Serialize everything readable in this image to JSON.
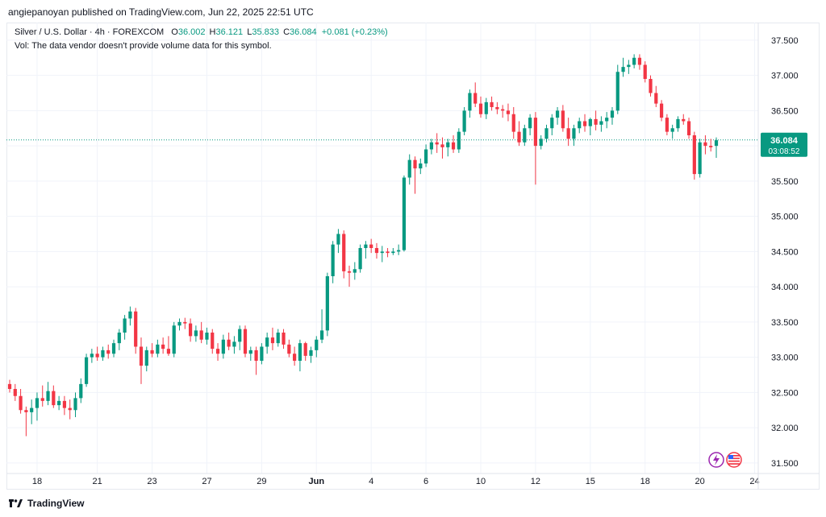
{
  "header": {
    "publisher": "angiepanoyan published on TradingView.com, Jun 22, 2025 22:51 UTC"
  },
  "legend": {
    "symbol": "Silver / U.S. Dollar · 4h · FOREXCOM",
    "open_label": "O",
    "open": "36.002",
    "high_label": "H",
    "high": "36.121",
    "low_label": "L",
    "low": "35.833",
    "close_label": "C",
    "close": "36.084",
    "change": "+0.081 (+0.23%)",
    "vol_note": "Vol: The data vendor doesn't provide volume data for this symbol."
  },
  "price_label": {
    "price": "36.084",
    "countdown": "03:08:52"
  },
  "footer": {
    "brand": "TradingView"
  },
  "icons": {
    "lightning": "lightning-icon",
    "flag": "us-flag-icon"
  },
  "colors": {
    "up": "#089981",
    "down": "#f23645",
    "grid": "#f0f3fa",
    "axis_text": "#131722"
  },
  "chart_data": {
    "type": "candlestick",
    "title": "Silver / U.S. Dollar · 4h · FOREXCOM",
    "ylim": [
      31.35,
      37.75
    ],
    "y_ticks": [
      "31.500",
      "32.000",
      "32.500",
      "33.000",
      "33.500",
      "34.000",
      "34.500",
      "35.000",
      "35.500",
      "36.000",
      "36.500",
      "37.000",
      "37.500"
    ],
    "x_ticks": [
      {
        "label": "18",
        "index": 5
      },
      {
        "label": "21",
        "index": 16
      },
      {
        "label": "23",
        "index": 26
      },
      {
        "label": "27",
        "index": 36
      },
      {
        "label": "29",
        "index": 46
      },
      {
        "label": "Jun",
        "index": 56
      },
      {
        "label": "4",
        "index": 66
      },
      {
        "label": "6",
        "index": 76
      },
      {
        "label": "10",
        "index": 86
      },
      {
        "label": "12",
        "index": 96
      },
      {
        "label": "15",
        "index": 106
      },
      {
        "label": "18",
        "index": 116
      },
      {
        "label": "20",
        "index": 126
      },
      {
        "label": "24",
        "index": 136
      }
    ],
    "last_price": 36.084,
    "candles": [
      [
        32.62,
        32.68,
        32.5,
        32.55
      ],
      [
        32.55,
        32.62,
        32.38,
        32.45
      ],
      [
        32.45,
        32.55,
        32.2,
        32.25
      ],
      [
        32.25,
        32.3,
        31.88,
        32.22
      ],
      [
        32.22,
        32.4,
        32.05,
        32.28
      ],
      [
        32.28,
        32.5,
        32.1,
        32.42
      ],
      [
        32.42,
        32.6,
        32.3,
        32.38
      ],
      [
        32.38,
        32.65,
        32.32,
        32.52
      ],
      [
        32.52,
        32.6,
        32.28,
        32.32
      ],
      [
        32.32,
        32.45,
        32.25,
        32.38
      ],
      [
        32.38,
        32.45,
        32.18,
        32.28
      ],
      [
        32.28,
        32.4,
        32.12,
        32.25
      ],
      [
        32.25,
        32.5,
        32.15,
        32.42
      ],
      [
        32.42,
        32.7,
        32.35,
        32.62
      ],
      [
        32.62,
        33.05,
        32.58,
        33.0
      ],
      [
        33.0,
        33.12,
        32.92,
        33.05
      ],
      [
        33.05,
        33.15,
        32.95,
        33.0
      ],
      [
        33.0,
        33.15,
        32.95,
        33.1
      ],
      [
        33.1,
        33.18,
        32.98,
        33.05
      ],
      [
        33.05,
        33.25,
        33.0,
        33.2
      ],
      [
        33.2,
        33.4,
        33.1,
        33.35
      ],
      [
        33.35,
        33.6,
        33.25,
        33.55
      ],
      [
        33.55,
        33.72,
        33.45,
        33.65
      ],
      [
        33.65,
        33.7,
        33.05,
        33.15
      ],
      [
        33.15,
        33.28,
        32.62,
        32.88
      ],
      [
        32.88,
        33.15,
        32.8,
        33.1
      ],
      [
        33.1,
        33.2,
        33.0,
        33.05
      ],
      [
        33.05,
        33.25,
        33.0,
        33.18
      ],
      [
        33.18,
        33.28,
        33.05,
        33.12
      ],
      [
        33.12,
        33.3,
        33.02,
        33.05
      ],
      [
        33.05,
        33.5,
        33.0,
        33.45
      ],
      [
        33.45,
        33.55,
        33.38,
        33.5
      ],
      [
        33.5,
        33.56,
        33.4,
        33.48
      ],
      [
        33.48,
        33.55,
        33.22,
        33.3
      ],
      [
        33.3,
        33.45,
        33.22,
        33.38
      ],
      [
        33.38,
        33.5,
        33.2,
        33.25
      ],
      [
        33.25,
        33.42,
        33.18,
        33.35
      ],
      [
        33.35,
        33.4,
        33.05,
        33.12
      ],
      [
        33.12,
        33.2,
        32.95,
        33.05
      ],
      [
        33.05,
        33.32,
        32.98,
        33.25
      ],
      [
        33.25,
        33.35,
        33.1,
        33.15
      ],
      [
        33.15,
        33.3,
        33.05,
        33.22
      ],
      [
        33.22,
        33.45,
        33.1,
        33.4
      ],
      [
        33.4,
        33.45,
        33.0,
        33.05
      ],
      [
        33.05,
        33.15,
        32.95,
        33.1
      ],
      [
        33.1,
        33.15,
        32.75,
        32.95
      ],
      [
        32.95,
        33.2,
        32.9,
        33.15
      ],
      [
        33.15,
        33.35,
        33.05,
        33.28
      ],
      [
        33.28,
        33.42,
        33.1,
        33.2
      ],
      [
        33.2,
        33.4,
        33.15,
        33.35
      ],
      [
        33.35,
        33.4,
        33.12,
        33.18
      ],
      [
        33.18,
        33.25,
        33.0,
        33.05
      ],
      [
        33.05,
        33.15,
        32.88,
        32.95
      ],
      [
        32.95,
        33.25,
        32.8,
        33.2
      ],
      [
        33.2,
        33.22,
        32.95,
        33.02
      ],
      [
        33.02,
        33.15,
        32.92,
        33.1
      ],
      [
        33.1,
        33.3,
        33.0,
        33.25
      ],
      [
        33.25,
        33.68,
        33.2,
        33.38
      ],
      [
        33.38,
        34.2,
        33.3,
        34.15
      ],
      [
        34.15,
        34.65,
        34.05,
        34.6
      ],
      [
        34.6,
        34.82,
        34.48,
        34.75
      ],
      [
        34.75,
        34.8,
        34.12,
        34.22
      ],
      [
        34.22,
        34.3,
        34.0,
        34.2
      ],
      [
        34.2,
        34.35,
        34.1,
        34.25
      ],
      [
        34.25,
        34.6,
        34.2,
        34.55
      ],
      [
        34.55,
        34.65,
        34.4,
        34.6
      ],
      [
        34.6,
        34.68,
        34.48,
        34.55
      ],
      [
        34.55,
        34.62,
        34.4,
        34.48
      ],
      [
        34.48,
        34.58,
        34.35,
        34.5
      ],
      [
        34.5,
        34.55,
        34.42,
        34.48
      ],
      [
        34.48,
        34.55,
        34.45,
        34.5
      ],
      [
        34.5,
        34.6,
        34.45,
        34.52
      ],
      [
        34.52,
        35.58,
        34.5,
        35.55
      ],
      [
        35.55,
        35.88,
        35.45,
        35.8
      ],
      [
        35.8,
        35.85,
        35.32,
        35.68
      ],
      [
        35.68,
        35.82,
        35.6,
        35.75
      ],
      [
        35.75,
        36.02,
        35.7,
        35.95
      ],
      [
        35.95,
        36.1,
        35.88,
        36.05
      ],
      [
        36.05,
        36.18,
        35.9,
        36.02
      ],
      [
        36.02,
        36.12,
        35.82,
        35.98
      ],
      [
        35.98,
        36.1,
        35.85,
        36.05
      ],
      [
        36.05,
        36.15,
        35.9,
        35.95
      ],
      [
        35.95,
        36.25,
        35.9,
        36.2
      ],
      [
        36.2,
        36.55,
        36.15,
        36.5
      ],
      [
        36.5,
        36.8,
        36.4,
        36.75
      ],
      [
        36.75,
        36.9,
        36.55,
        36.6
      ],
      [
        36.6,
        36.7,
        36.4,
        36.45
      ],
      [
        36.45,
        36.68,
        36.38,
        36.62
      ],
      [
        36.62,
        36.7,
        36.5,
        36.55
      ],
      [
        36.55,
        36.62,
        36.45,
        36.52
      ],
      [
        36.52,
        36.58,
        36.4,
        36.5
      ],
      [
        36.5,
        36.6,
        36.35,
        36.45
      ],
      [
        36.45,
        36.55,
        36.1,
        36.2
      ],
      [
        36.2,
        36.35,
        36.0,
        36.05
      ],
      [
        36.05,
        36.3,
        36.0,
        36.25
      ],
      [
        36.25,
        36.45,
        36.15,
        36.4
      ],
      [
        36.4,
        36.48,
        35.45,
        36.0
      ],
      [
        36.0,
        36.15,
        35.95,
        36.1
      ],
      [
        36.1,
        36.3,
        36.05,
        36.25
      ],
      [
        36.25,
        36.45,
        36.15,
        36.4
      ],
      [
        36.4,
        36.55,
        36.3,
        36.5
      ],
      [
        36.5,
        36.58,
        36.2,
        36.25
      ],
      [
        36.25,
        36.4,
        36.0,
        36.1
      ],
      [
        36.1,
        36.3,
        36.0,
        36.25
      ],
      [
        36.25,
        36.4,
        36.18,
        36.35
      ],
      [
        36.35,
        36.45,
        36.2,
        36.28
      ],
      [
        36.28,
        36.4,
        36.15,
        36.38
      ],
      [
        36.38,
        36.5,
        36.22,
        36.3
      ],
      [
        36.3,
        36.42,
        36.2,
        36.35
      ],
      [
        36.35,
        36.48,
        36.25,
        36.4
      ],
      [
        36.4,
        36.55,
        36.3,
        36.5
      ],
      [
        36.5,
        37.15,
        36.45,
        37.05
      ],
      [
        37.05,
        37.25,
        36.98,
        37.12
      ],
      [
        37.12,
        37.22,
        37.02,
        37.15
      ],
      [
        37.15,
        37.3,
        37.1,
        37.25
      ],
      [
        37.25,
        37.3,
        37.08,
        37.15
      ],
      [
        37.15,
        37.2,
        36.9,
        36.95
      ],
      [
        36.95,
        37.0,
        36.7,
        36.75
      ],
      [
        36.75,
        36.85,
        36.55,
        36.6
      ],
      [
        36.6,
        36.65,
        36.35,
        36.4
      ],
      [
        36.4,
        36.45,
        36.15,
        36.2
      ],
      [
        36.2,
        36.3,
        36.1,
        36.25
      ],
      [
        36.25,
        36.42,
        36.2,
        36.38
      ],
      [
        36.38,
        36.45,
        36.3,
        36.35
      ],
      [
        36.35,
        36.4,
        36.1,
        36.15
      ],
      [
        36.15,
        36.2,
        35.52,
        35.6
      ],
      [
        35.6,
        36.1,
        35.55,
        36.05
      ],
      [
        36.05,
        36.15,
        35.88,
        36.0
      ],
      [
        36.0,
        36.1,
        35.92,
        35.98
      ],
      [
        36.0,
        36.12,
        35.83,
        36.08
      ]
    ]
  }
}
